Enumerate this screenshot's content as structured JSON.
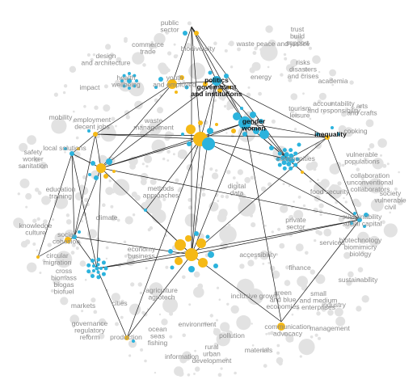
{
  "colors": {
    "gold": "#f5b916",
    "blue": "#2bb3dd",
    "grey": "#e2e2e2",
    "edge": "#1a1a1a",
    "label": "#8a8a8a",
    "label_dark": "#111111"
  },
  "labels": [
    {
      "id": "public-sector",
      "lines": [
        "public",
        "sector"
      ]
    },
    {
      "id": "commerce-trade",
      "lines": [
        "commerce",
        "trade"
      ]
    },
    {
      "id": "biodiversity",
      "lines": [
        "biodiversity"
      ]
    },
    {
      "id": "waste-peace",
      "lines": [
        "waste peace and justice"
      ]
    },
    {
      "id": "trust-build",
      "lines": [
        "trust",
        "build",
        "support"
      ]
    },
    {
      "id": "design-architecture",
      "lines": [
        "design",
        "and architecture"
      ]
    },
    {
      "id": "health-wellbeing",
      "lines": [
        "health",
        "wellbeing"
      ]
    },
    {
      "id": "youth-employment",
      "lines": [
        "youth",
        "and employed"
      ]
    },
    {
      "id": "politics",
      "lines": [
        "politics",
        "government",
        "and institutions"
      ],
      "dark": true
    },
    {
      "id": "energy",
      "lines": [
        "energy"
      ]
    },
    {
      "id": "risks-disasters",
      "lines": [
        "risks",
        "disasters",
        "and crises"
      ]
    },
    {
      "id": "academia",
      "lines": [
        "academia"
      ]
    },
    {
      "id": "impact",
      "lines": [
        "impact"
      ]
    },
    {
      "id": "accountability",
      "lines": [
        "accountability",
        "and responsibility"
      ]
    },
    {
      "id": "arts-crafts",
      "lines": [
        "arts",
        "and crafts"
      ]
    },
    {
      "id": "mobility",
      "lines": [
        "mobility"
      ]
    },
    {
      "id": "employment-decent-jobs",
      "lines": [
        "employment",
        "decent jobs"
      ]
    },
    {
      "id": "waste-management",
      "lines": [
        "waste",
        "management"
      ]
    },
    {
      "id": "tourism-leisure",
      "lines": [
        "tourism",
        "leisure"
      ]
    },
    {
      "id": "gender-women",
      "lines": [
        "gender",
        "women"
      ],
      "dark": true
    },
    {
      "id": "inequality",
      "lines": [
        "inequality"
      ],
      "dark": true
    },
    {
      "id": "cooking",
      "lines": [
        "cooking"
      ]
    },
    {
      "id": "local-solutions",
      "lines": [
        "local solutions"
      ]
    },
    {
      "id": "safety-worker-sanitation",
      "lines": [
        "safety",
        "worker",
        "sanitation"
      ]
    },
    {
      "id": "communities",
      "lines": [
        "communities"
      ]
    },
    {
      "id": "vulnerable-populations",
      "lines": [
        "vulnerable",
        "populations"
      ]
    },
    {
      "id": "collaboration",
      "lines": [
        "collaboration",
        "unconventional",
        "collaborators"
      ]
    },
    {
      "id": "society-civil",
      "lines": [
        "society",
        "vulnerable",
        "civil"
      ]
    },
    {
      "id": "education-training",
      "lines": [
        "education",
        "training"
      ]
    },
    {
      "id": "methods-approaches",
      "lines": [
        "methods",
        "approaches"
      ]
    },
    {
      "id": "digital-data",
      "lines": [
        "digital",
        "data"
      ]
    },
    {
      "id": "food-security",
      "lines": [
        "food security"
      ]
    },
    {
      "id": "climate",
      "lines": [
        "climate"
      ]
    },
    {
      "id": "knowledge-culture",
      "lines": [
        "knowledge",
        "culture"
      ]
    },
    {
      "id": "social-cohesion",
      "lines": [
        "social",
        "cohesion"
      ]
    },
    {
      "id": "private-sector",
      "lines": [
        "private",
        "sector"
      ]
    },
    {
      "id": "sustainability-capital",
      "lines": [
        "sustainability",
        "social capital"
      ]
    },
    {
      "id": "economy-business",
      "lines": [
        "economy",
        "business"
      ]
    },
    {
      "id": "accessibility",
      "lines": [
        "accessibility"
      ]
    },
    {
      "id": "services",
      "lines": [
        "services"
      ]
    },
    {
      "id": "biotechnology",
      "lines": [
        "biotechnology",
        "biomimicry",
        "biology"
      ]
    },
    {
      "id": "circular-migration",
      "lines": [
        "circular",
        "migration"
      ]
    },
    {
      "id": "cross-biomass",
      "lines": [
        "cross",
        "biomass",
        "biogas",
        "biofuel"
      ]
    },
    {
      "id": "agriculture",
      "lines": [
        "agriculture",
        "agrotech"
      ]
    },
    {
      "id": "finance",
      "lines": [
        "finance"
      ]
    },
    {
      "id": "sustainability",
      "lines": [
        "sustainability"
      ]
    },
    {
      "id": "inclusive-growth",
      "lines": [
        "inclusive growth"
      ]
    },
    {
      "id": "green-blue",
      "lines": [
        "green",
        "and blue",
        "economies"
      ]
    },
    {
      "id": "small-medium",
      "lines": [
        "small",
        "and medium",
        "enterprises"
      ]
    },
    {
      "id": "industry",
      "lines": [
        "industry"
      ]
    },
    {
      "id": "markets",
      "lines": [
        "markets"
      ]
    },
    {
      "id": "cities",
      "lines": [
        "cities"
      ]
    },
    {
      "id": "governance",
      "lines": [
        "governance",
        "regulatory",
        "reform"
      ]
    },
    {
      "id": "environment",
      "lines": [
        "environment"
      ]
    },
    {
      "id": "communication-advocacy",
      "lines": [
        "communication",
        "advocacy"
      ]
    },
    {
      "id": "management",
      "lines": [
        "management"
      ]
    },
    {
      "id": "production",
      "lines": [
        "production"
      ]
    },
    {
      "id": "ocean-fishing",
      "lines": [
        "ocean",
        "seas",
        "fishing"
      ]
    },
    {
      "id": "pollution",
      "lines": [
        "pollution"
      ]
    },
    {
      "id": "materials",
      "lines": [
        "materials"
      ]
    },
    {
      "id": "rural-urban",
      "lines": [
        "rural",
        "urban",
        "development"
      ]
    },
    {
      "id": "information",
      "lines": [
        "information"
      ]
    }
  ]
}
